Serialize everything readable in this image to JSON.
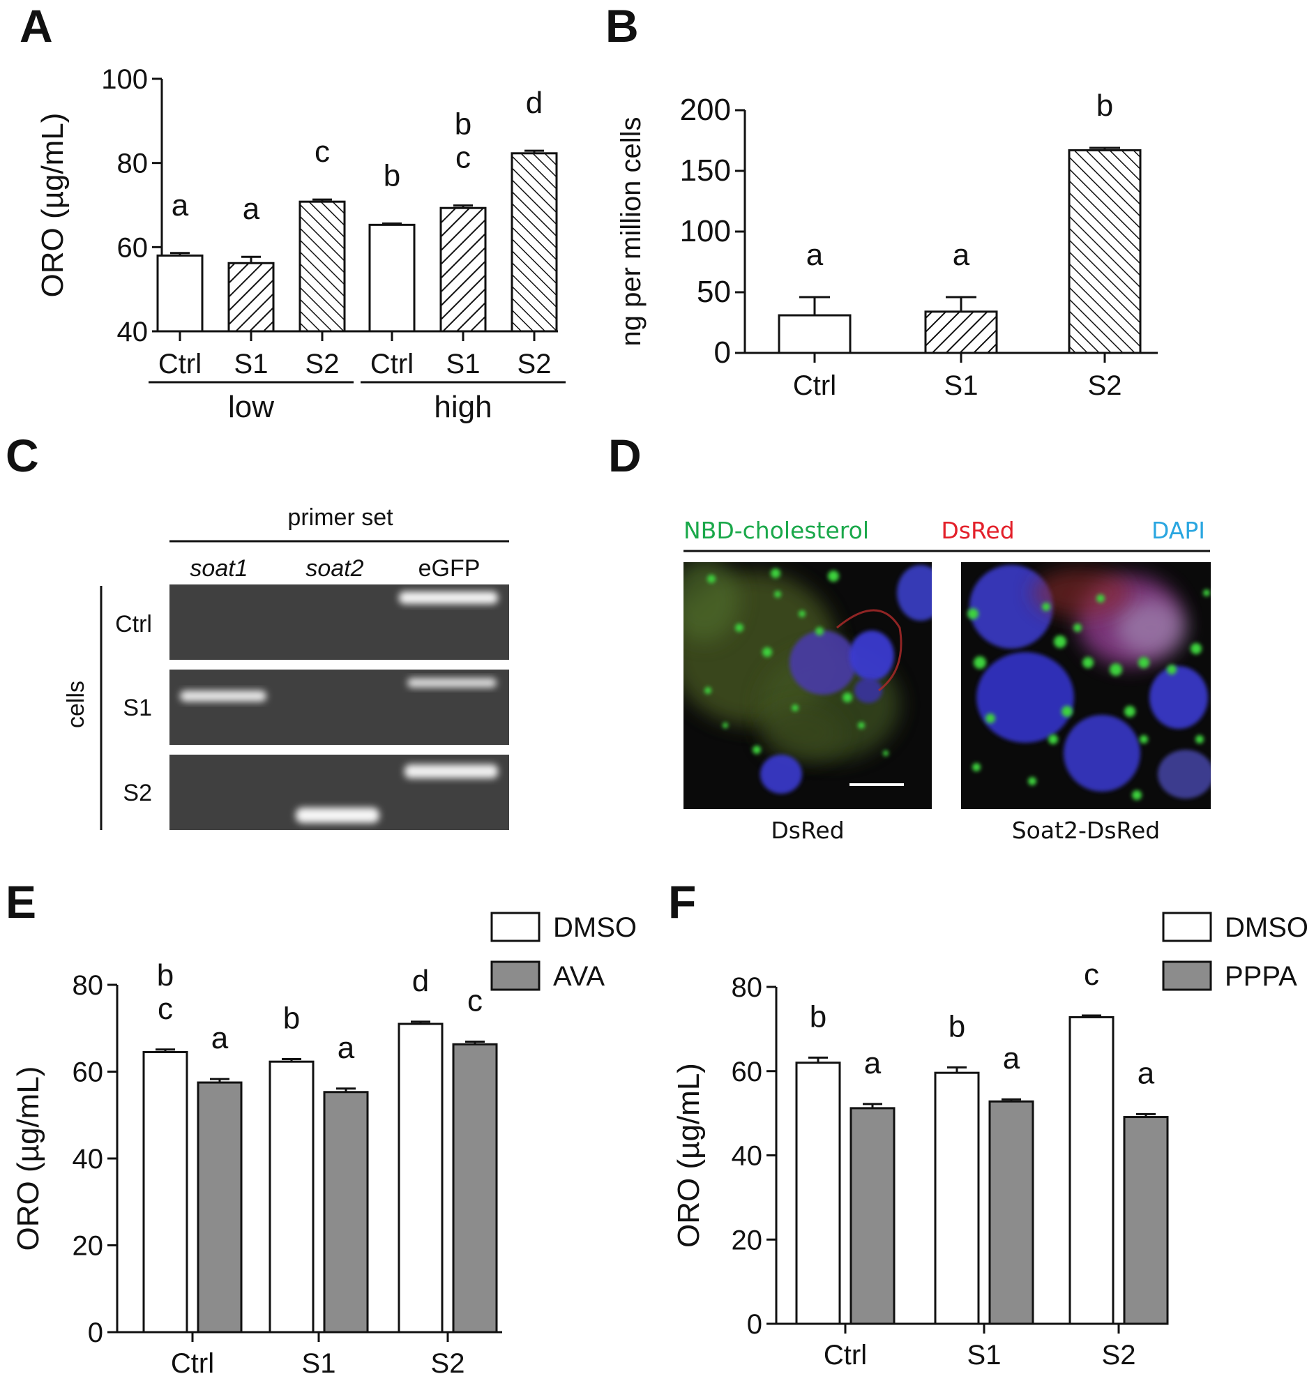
{
  "panels": {
    "A": {
      "letter": "A"
    },
    "B": {
      "letter": "B"
    },
    "C": {
      "letter": "C"
    },
    "D": {
      "letter": "D"
    },
    "E": {
      "letter": "E"
    },
    "F": {
      "letter": "F"
    }
  },
  "chart_data": [
    {
      "panel": "A",
      "type": "bar",
      "ylabel": "ORO (µg/mL)",
      "ylim": [
        40,
        100
      ],
      "yticks": [
        40,
        60,
        80,
        100
      ],
      "categories": [
        "Ctrl",
        "S1",
        "S2",
        "Ctrl",
        "S1",
        "S2"
      ],
      "groups": [
        {
          "label": "low",
          "indices": [
            0,
            1,
            2
          ]
        },
        {
          "label": "high",
          "indices": [
            3,
            4,
            5
          ]
        }
      ],
      "values": [
        58,
        56.2,
        70.8,
        65.3,
        69.3,
        82.3
      ],
      "errors": [
        0.6,
        1.5,
        0.5,
        0.3,
        0.6,
        0.6
      ],
      "fills": [
        "none",
        "hatch",
        "hatch-fine",
        "none",
        "hatch",
        "hatch-fine"
      ],
      "significance": [
        "a",
        "a",
        "c",
        "b",
        "b\nc",
        "d"
      ]
    },
    {
      "panel": "B",
      "type": "bar",
      "ylabel": "ng per million cells",
      "ylim": [
        0,
        200
      ],
      "yticks": [
        0,
        50,
        100,
        150,
        200
      ],
      "categories": [
        "Ctrl",
        "S1",
        "S2"
      ],
      "values": [
        31,
        34,
        167
      ],
      "errors": [
        15,
        12,
        2
      ],
      "fills": [
        "none",
        "hatch",
        "hatch-fine"
      ],
      "significance": [
        "a",
        "a",
        "b"
      ]
    },
    {
      "panel": "E",
      "type": "bar",
      "ylabel": "ORO (µg/mL)",
      "ylim": [
        0,
        80
      ],
      "yticks": [
        0,
        20,
        40,
        60,
        80
      ],
      "categories": [
        "Ctrl",
        "S1",
        "S2"
      ],
      "legend": [
        "DMSO",
        "AVA"
      ],
      "legend_position": "top-right",
      "series": [
        {
          "name": "DMSO",
          "color": "#ffffff",
          "values": [
            64.5,
            62.3,
            71
          ],
          "errors": [
            0.6,
            0.6,
            0.5
          ],
          "significance": [
            "b\nc",
            "b",
            "d"
          ]
        },
        {
          "name": "AVA",
          "color": "#8c8c8c",
          "values": [
            57.5,
            55.3,
            66.3
          ],
          "errors": [
            0.8,
            0.8,
            0.6
          ],
          "significance": [
            "a",
            "a",
            "c"
          ]
        }
      ]
    },
    {
      "panel": "F",
      "type": "bar",
      "ylabel": "ORO (µg/mL)",
      "ylim": [
        0,
        80
      ],
      "yticks": [
        0,
        20,
        40,
        60,
        80
      ],
      "categories": [
        "Ctrl",
        "S1",
        "S2"
      ],
      "legend": [
        "DMSO",
        "PPPA"
      ],
      "legend_position": "top-right",
      "series": [
        {
          "name": "DMSO",
          "color": "#ffffff",
          "values": [
            62,
            59.6,
            72.8
          ],
          "errors": [
            1.2,
            1.3,
            0.4
          ],
          "significance": [
            "b",
            "b",
            "c"
          ]
        },
        {
          "name": "PPPA",
          "color": "#8c8c8c",
          "values": [
            51.2,
            52.8,
            49.1
          ],
          "errors": [
            1.0,
            0.5,
            0.7
          ],
          "significance": [
            "a",
            "a",
            "a"
          ]
        }
      ]
    }
  ],
  "gel": {
    "header": "primer set",
    "columns": [
      "soat1",
      "soat2",
      "eGFP"
    ],
    "side_label": "cells",
    "rows": [
      "Ctrl",
      "S1",
      "S2"
    ],
    "bands": [
      [
        0,
        0,
        1
      ],
      [
        1,
        0,
        1
      ],
      [
        0,
        1,
        1
      ]
    ]
  },
  "microscopy": {
    "header_labels": [
      {
        "text": "NBD-cholesterol",
        "color": "#1aa84a"
      },
      {
        "text": "DsRed",
        "color": "#e3202a"
      },
      {
        "text": "DAPI",
        "color": "#2aa6e0"
      }
    ],
    "images": [
      {
        "label": "DsRed",
        "has_scale_bar": true
      },
      {
        "label": "Soat2-DsRed",
        "has_scale_bar": false
      }
    ]
  }
}
